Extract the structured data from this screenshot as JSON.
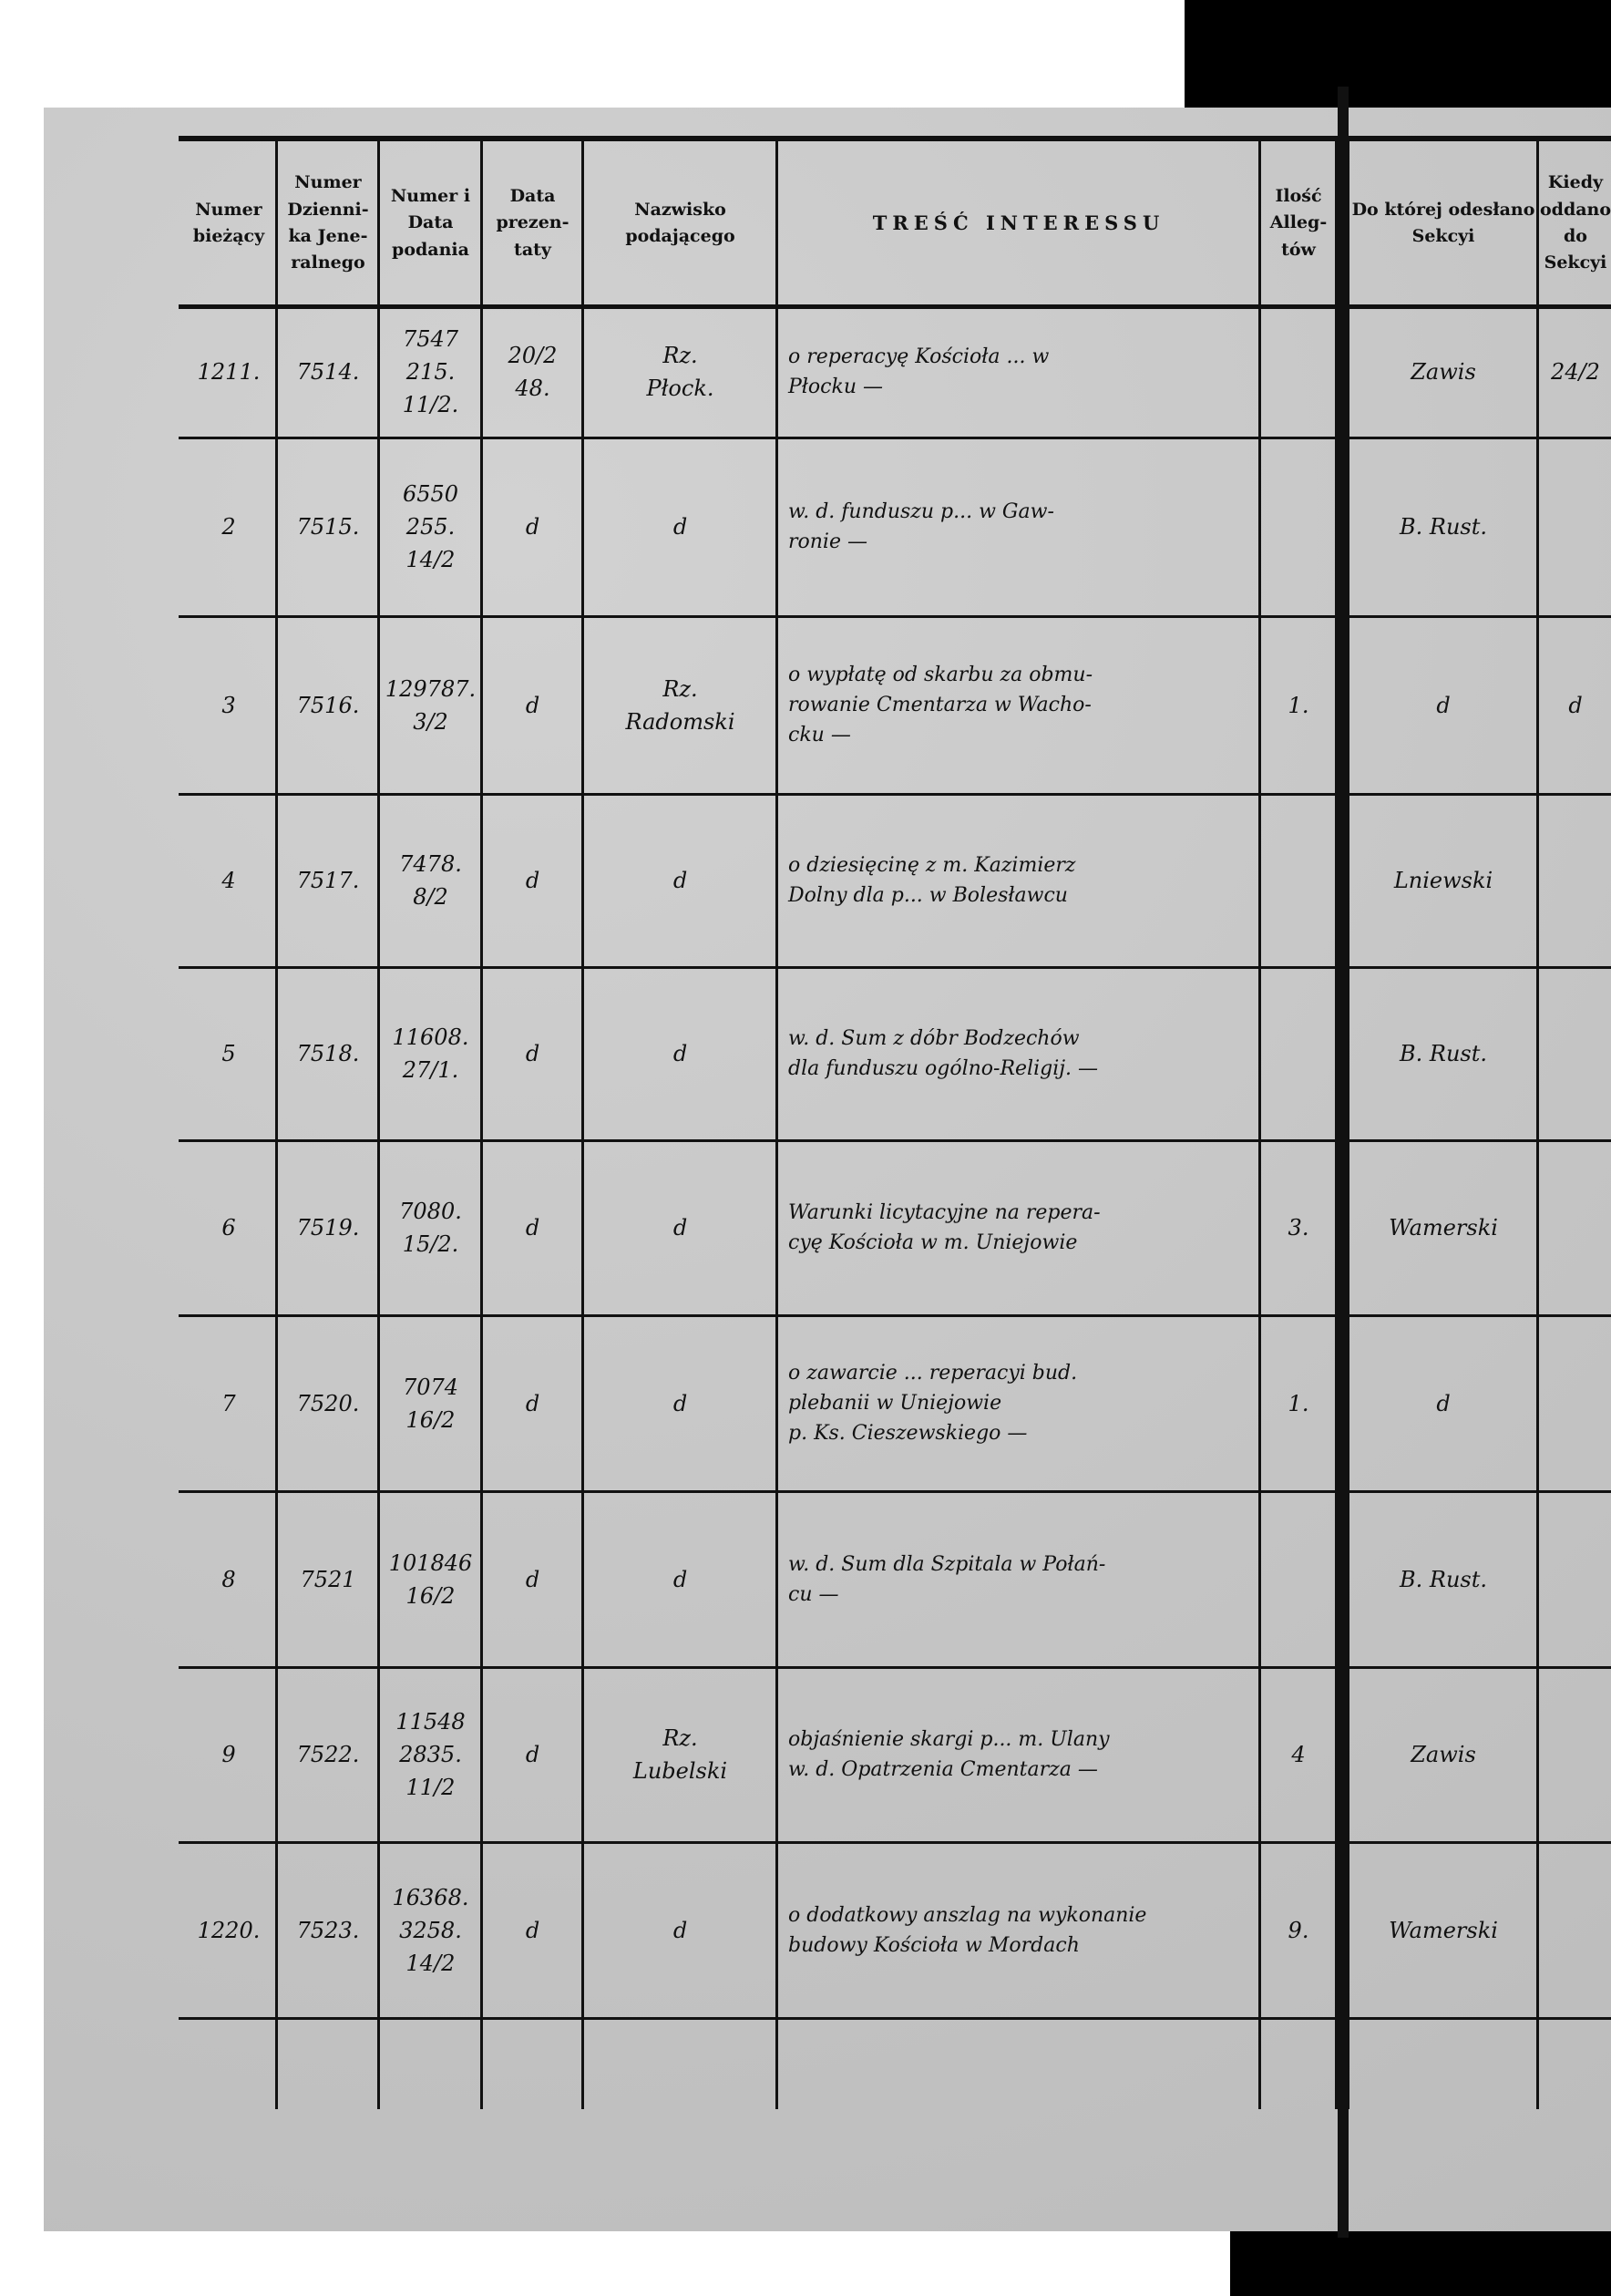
{
  "headers": [
    "Numer\nbieżący",
    "Numer\nDzienni-\nka Jene-\nralnego",
    "Numer\ni Data\npodania",
    "Data\nprezen-\ntaty",
    "Nazwisko\npodającego",
    "TREŚĆ INTERESSU",
    "Ilość\nAlleg-\ntów",
    "Do której\nodesłano Sekcyi",
    "Kiedy\noddano\ndo\nSekcyi"
  ],
  "rows": [
    [
      "1211.",
      "7514.",
      "7547\n215.\n11/2.",
      "20/2\n48.",
      "Rz.\nPłock.",
      "o reperacyę Kościoła ... w\nPłocku —",
      "",
      "Zawis",
      "24/2"
    ],
    [
      "2",
      "7515.",
      "6550\n255.\n14/2",
      "d",
      "d",
      "w. d. funduszu p... w Gaw-\nronie —",
      "",
      "B. Rust.",
      ""
    ],
    [
      "3",
      "7516.",
      "129787.\n3/2",
      "d",
      "Rz.\nRadomski",
      "o wypłatę od skarbu za obmu-\nrowanie Cmentarza w Wacho-\ncku —",
      "1.",
      "d",
      "d"
    ],
    [
      "4",
      "7517.",
      "7478.\n8/2",
      "d",
      "d",
      "o dziesięcinę z m. Kazimierz\nDolny dla p... w Bolesławcu",
      "",
      "Lniewski",
      ""
    ],
    [
      "5",
      "7518.",
      "11608.\n27/1.",
      "d",
      "d",
      "w. d. Sum z dóbr Bodzechów\ndla funduszu ogólno-Religij. —",
      "",
      "B. Rust.",
      ""
    ],
    [
      "6",
      "7519.",
      "7080.\n15/2.",
      "d",
      "d",
      "Warunki licytacyjne na repera-\ncyę Kościoła w m. Uniejowie",
      "3.",
      "Wamerski",
      ""
    ],
    [
      "7",
      "7520.",
      "7074\n16/2",
      "d",
      "d",
      "o zawarcie ... reperacyi bud.\nplebanii w Uniejowie\np. Ks. Cieszewskiego —",
      "1.",
      "d",
      ""
    ],
    [
      "8",
      "7521",
      "101846\n16/2",
      "d",
      "d",
      "w. d. Sum dla Szpitala w Połań-\ncu —",
      "",
      "B. Rust.",
      ""
    ],
    [
      "9",
      "7522.",
      "11548\n2835.\n11/2",
      "d",
      "Rz.\nLubelski",
      "objaśnienie skargi p... m. Ulany\nw. d. Opatrzenia Cmentarza —",
      "4",
      "Zawis",
      ""
    ],
    [
      "1220.",
      "7523.",
      "16368.\n3258.\n14/2",
      "d",
      "d",
      "o dodatkowy anszlag na wykonanie\nbudowy Kościoła w Mordach",
      "9.",
      "Wamerski",
      ""
    ]
  ]
}
